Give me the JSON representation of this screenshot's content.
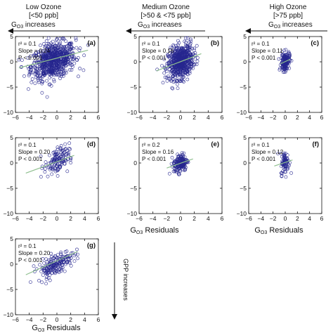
{
  "columns": [
    {
      "title": "Low Ozone",
      "range": "[<50 ppb]"
    },
    {
      "title": "Medium Ozone",
      "range": "[>50 & <75 ppb]"
    },
    {
      "title": "High Ozone",
      "range": "[>75 ppb]"
    }
  ],
  "gs_increases": {
    "prefix": "G",
    "sub": "O3",
    "suffix": " increases"
  },
  "gpp_increases": "GPP increases",
  "residuals_label": {
    "prefix": "G",
    "sub": "O3",
    "suffix": " Residuals"
  },
  "colors": {
    "points": "#27278f",
    "fit": "#8fbf8f",
    "axis": "#111111"
  },
  "chart_data": [
    {
      "type": "scatter",
      "panel": "(a)",
      "stats": [
        "r² = 0.1",
        "Slope = 0.24",
        "P < 0.001"
      ],
      "xlim": [
        -6,
        6
      ],
      "ylim": [
        -10,
        5
      ],
      "xticks": [
        -6,
        -4,
        -2,
        0,
        2,
        4,
        6
      ],
      "yticks": [
        -10,
        -5,
        0,
        5
      ],
      "cloud": {
        "cx": -0.5,
        "cy": 0.2,
        "sx": 1.6,
        "sy": 1.7,
        "n": 700,
        "xmin": -5.5,
        "xmax": 4.5
      },
      "fit": {
        "x": [
          -5.5,
          4.5
        ],
        "y": [
          -1.2,
          2.3
        ]
      }
    },
    {
      "type": "scatter",
      "panel": "(b)",
      "stats": [
        "r² = 0.1",
        "Slope = 0.16",
        "P < 0.001"
      ],
      "xlim": [
        -6,
        6
      ],
      "ylim": [
        -10,
        5
      ],
      "xticks": [
        -6,
        -4,
        -2,
        0,
        2,
        4,
        6
      ],
      "yticks": [
        -10,
        -5,
        0,
        5
      ],
      "cloud": {
        "cx": 0.0,
        "cy": 0.0,
        "sx": 0.9,
        "sy": 1.6,
        "n": 600,
        "xmin": -3.5,
        "xmax": 3.0
      },
      "fit": {
        "x": [
          -3.5,
          3.0
        ],
        "y": [
          -1.8,
          1.6
        ]
      }
    },
    {
      "type": "scatter",
      "panel": "(c)",
      "stats": [
        "r² = 0.1",
        "Slope = 0.11",
        "P < 0.001"
      ],
      "xlim": [
        -6,
        6
      ],
      "ylim": [
        -10,
        5
      ],
      "xticks": [
        -6,
        -4,
        -2,
        0,
        2,
        4,
        6
      ],
      "yticks": [
        -10,
        -5,
        0,
        5
      ],
      "cloud": {
        "cx": 0.0,
        "cy": 0.0,
        "sx": 0.35,
        "sy": 0.9,
        "n": 150,
        "xmin": -1.2,
        "xmax": 1.2
      },
      "fit": {
        "x": [
          -0.8,
          0.8
        ],
        "y": [
          -0.4,
          0.5
        ]
      }
    },
    {
      "type": "scatter",
      "panel": "(d)",
      "stats": [
        "r² = 0.1",
        "Slope = 0.20",
        "P < 0.001"
      ],
      "xlim": [
        -6,
        6
      ],
      "ylim": [
        -10,
        5
      ],
      "xticks": [
        -6,
        -4,
        -2,
        0,
        2,
        4,
        6
      ],
      "yticks": [
        -10,
        -5,
        0,
        5
      ],
      "cloud": {
        "cx": 0.0,
        "cy": 0.4,
        "sx": 0.9,
        "sy": 1.3,
        "n": 130,
        "xmin": -3.2,
        "xmax": 2.0
      },
      "fit": {
        "x": [
          -4.5,
          2.5
        ],
        "y": [
          -2.0,
          1.5
        ]
      }
    },
    {
      "type": "scatter",
      "panel": "(e)",
      "stats": [
        "r² = 0.2",
        "Slope = 0.16",
        "P < 0.001"
      ],
      "xlim": [
        -6,
        6
      ],
      "ylim": [
        -10,
        5
      ],
      "xticks": [
        -6,
        -4,
        -2,
        0,
        2,
        4,
        6
      ],
      "yticks": [
        -10,
        -5,
        0,
        5
      ],
      "cloud": {
        "cx": 0.0,
        "cy": 0.0,
        "sx": 0.5,
        "sy": 0.9,
        "n": 170,
        "xmin": -1.6,
        "xmax": 1.6
      },
      "fit": {
        "x": [
          -2.0,
          1.8
        ],
        "y": [
          -1.0,
          0.8
        ]
      }
    },
    {
      "type": "scatter",
      "panel": "(f)",
      "stats": [
        "r² = 0.1",
        "Slope = 0.12",
        "P < 0.001"
      ],
      "xlim": [
        -6,
        6
      ],
      "ylim": [
        -10,
        5
      ],
      "xticks": [
        -6,
        -4,
        -2,
        0,
        2,
        4,
        6
      ],
      "yticks": [
        -10,
        -5,
        0,
        5
      ],
      "cloud": {
        "cx": 0.0,
        "cy": 0.0,
        "sx": 0.35,
        "sy": 1.1,
        "n": 80,
        "xmin": -1.2,
        "xmax": 1.3
      },
      "fit": {
        "x": [
          -1.8,
          1.2
        ],
        "y": [
          -0.6,
          0.6
        ]
      }
    },
    {
      "type": "scatter",
      "panel": "(g)",
      "stats": [
        "r² = 0.1",
        "Slope = 0.20",
        "P < 0.001"
      ],
      "xlim": [
        -6,
        6
      ],
      "ylim": [
        -10,
        5
      ],
      "xticks": [
        -6,
        -4,
        -2,
        0,
        2,
        4,
        6
      ],
      "yticks": [
        -10,
        -5,
        0,
        5
      ],
      "cloud": {
        "cx": -0.2,
        "cy": 0.0,
        "sx": 1.3,
        "sy": 1.0,
        "n": 180,
        "xmin": -4.6,
        "xmax": 3.0
      },
      "fit": {
        "x": [
          -4.5,
          3.0
        ],
        "y": [
          -2.1,
          2.5
        ]
      }
    }
  ]
}
